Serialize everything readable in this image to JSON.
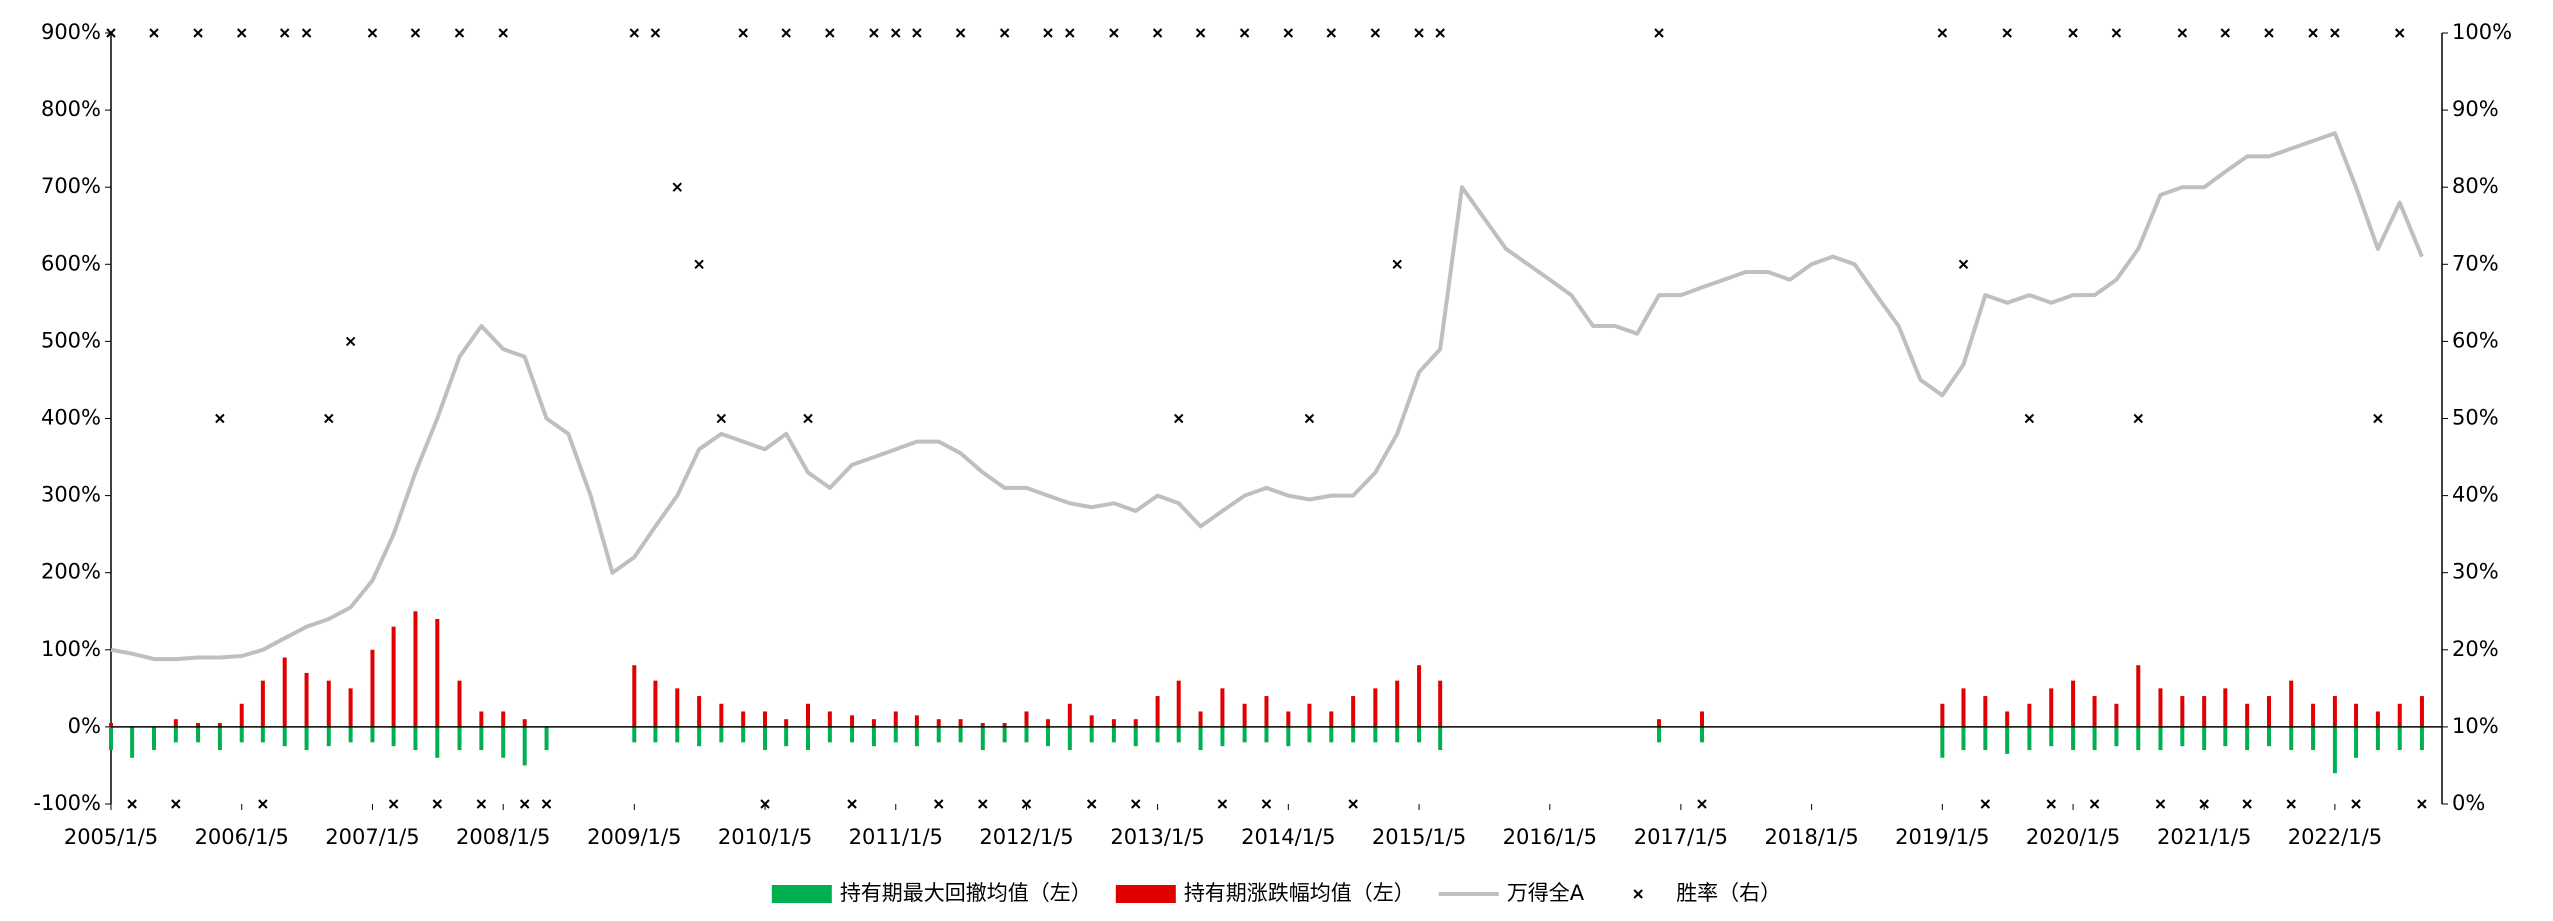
{
  "chart_data": {
    "type": "combo",
    "x": [
      "2005/1/5",
      "2005/3/5",
      "2005/5/5",
      "2005/7/5",
      "2005/9/5",
      "2005/11/5",
      "2006/1/5",
      "2006/3/5",
      "2006/5/5",
      "2006/7/5",
      "2006/9/5",
      "2006/11/5",
      "2007/1/5",
      "2007/3/5",
      "2007/5/5",
      "2007/7/5",
      "2007/9/5",
      "2007/11/5",
      "2008/1/5",
      "2008/3/5",
      "2008/5/5",
      "2008/7/5",
      "2008/9/5",
      "2008/11/5",
      "2009/1/5",
      "2009/3/5",
      "2009/5/5",
      "2009/7/5",
      "2009/9/5",
      "2009/11/5",
      "2010/1/5",
      "2010/3/5",
      "2010/5/5",
      "2010/7/5",
      "2010/9/5",
      "2010/11/5",
      "2011/1/5",
      "2011/3/5",
      "2011/5/5",
      "2011/7/5",
      "2011/9/5",
      "2011/11/5",
      "2012/1/5",
      "2012/3/5",
      "2012/5/5",
      "2012/7/5",
      "2012/9/5",
      "2012/11/5",
      "2013/1/5",
      "2013/3/5",
      "2013/5/5",
      "2013/7/5",
      "2013/9/5",
      "2013/11/5",
      "2014/1/5",
      "2014/3/5",
      "2014/5/5",
      "2014/7/5",
      "2014/9/5",
      "2014/11/5",
      "2015/1/5",
      "2015/3/5",
      "2015/5/5",
      "2015/7/5",
      "2015/9/5",
      "2015/11/5",
      "2016/1/5",
      "2016/3/5",
      "2016/5/5",
      "2016/7/5",
      "2016/9/5",
      "2016/11/5",
      "2017/1/5",
      "2017/3/5",
      "2017/5/5",
      "2017/7/5",
      "2017/9/5",
      "2017/11/5",
      "2018/1/5",
      "2018/3/5",
      "2018/5/5",
      "2018/7/5",
      "2018/9/5",
      "2018/11/5",
      "2019/1/5",
      "2019/3/5",
      "2019/5/5",
      "2019/7/5",
      "2019/9/5",
      "2019/11/5",
      "2020/1/5",
      "2020/3/5",
      "2020/5/5",
      "2020/7/5",
      "2020/9/5",
      "2020/11/5",
      "2021/1/5",
      "2021/3/5",
      "2021/5/5",
      "2021/7/5",
      "2021/9/5",
      "2021/11/5",
      "2022/1/5",
      "2022/3/5",
      "2022/5/5",
      "2022/7/5",
      "2022/9/5"
    ],
    "xlim": [
      "2005/1/5",
      "2022/10/31"
    ],
    "xticks": [
      "2005/1/5",
      "2006/1/5",
      "2007/1/5",
      "2008/1/5",
      "2009/1/5",
      "2010/1/5",
      "2011/1/5",
      "2012/1/5",
      "2013/1/5",
      "2014/1/5",
      "2015/1/5",
      "2016/1/5",
      "2017/1/5",
      "2018/1/5",
      "2019/1/5",
      "2020/1/5",
      "2021/1/5",
      "2022/1/5"
    ],
    "ylim": [
      -100,
      900
    ],
    "yticks": [
      {
        "value": -100,
        "label": "-100%"
      },
      {
        "value": 0,
        "label": "0%"
      },
      {
        "value": 100,
        "label": "100%"
      },
      {
        "value": 200,
        "label": "200%"
      },
      {
        "value": 300,
        "label": "300%"
      },
      {
        "value": 400,
        "label": "400%"
      },
      {
        "value": 500,
        "label": "500%"
      },
      {
        "value": 600,
        "label": "600%"
      },
      {
        "value": 700,
        "label": "700%"
      },
      {
        "value": 800,
        "label": "800%"
      },
      {
        "value": 900,
        "label": "900%"
      }
    ],
    "y2lim": [
      0,
      100
    ],
    "y2ticks": [
      {
        "value": 0,
        "label": "0%"
      },
      {
        "value": 10,
        "label": "10%"
      },
      {
        "value": 20,
        "label": "20%"
      },
      {
        "value": 30,
        "label": "30%"
      },
      {
        "value": 40,
        "label": "40%"
      },
      {
        "value": 50,
        "label": "50%"
      },
      {
        "value": 60,
        "label": "60%"
      },
      {
        "value": 70,
        "label": "70%"
      },
      {
        "value": 80,
        "label": "80%"
      },
      {
        "value": 90,
        "label": "90%"
      },
      {
        "value": 100,
        "label": "100%"
      }
    ],
    "series": [
      {
        "name": "持有期最大回撤均值（左）",
        "type": "bar",
        "color": "#00b050",
        "values": [
          -30,
          -40,
          -30,
          -20,
          -20,
          -30,
          -20,
          -20,
          -25,
          -30,
          -25,
          -20,
          -20,
          -25,
          -30,
          -40,
          -30,
          -30,
          -40,
          -50,
          -30,
          null,
          null,
          null,
          -20,
          -20,
          -20,
          -25,
          -20,
          -20,
          -30,
          -25,
          -30,
          -20,
          -20,
          -25,
          -20,
          -25,
          -20,
          -20,
          -30,
          -20,
          -20,
          -25,
          -30,
          -20,
          -20,
          -25,
          -20,
          -20,
          -30,
          -25,
          -20,
          -20,
          -25,
          -20,
          -20,
          -20,
          -20,
          -20,
          -20,
          -30,
          null,
          null,
          null,
          null,
          null,
          null,
          null,
          null,
          null,
          -20,
          null,
          -20,
          null,
          null,
          null,
          null,
          null,
          null,
          null,
          null,
          null,
          null,
          -40,
          -30,
          -30,
          -35,
          -30,
          -25,
          -30,
          -30,
          -25,
          -30,
          -30,
          -25,
          -30,
          -25,
          -30,
          -25,
          -30,
          -30,
          -60,
          -40,
          -30,
          -30,
          -30
        ]
      },
      {
        "name": "持有期涨跌幅均值（左）",
        "type": "bar",
        "color": "#e00000",
        "values": [
          5,
          0,
          0,
          10,
          5,
          5,
          30,
          60,
          90,
          70,
          60,
          50,
          100,
          130,
          150,
          140,
          60,
          20,
          20,
          10,
          0,
          null,
          null,
          null,
          80,
          60,
          50,
          40,
          30,
          20,
          20,
          10,
          30,
          20,
          15,
          10,
          20,
          15,
          10,
          10,
          5,
          5,
          20,
          10,
          30,
          15,
          10,
          10,
          40,
          60,
          20,
          50,
          30,
          40,
          20,
          30,
          20,
          40,
          50,
          60,
          80,
          60,
          null,
          null,
          null,
          null,
          null,
          null,
          null,
          null,
          null,
          10,
          null,
          20,
          null,
          null,
          null,
          null,
          null,
          null,
          null,
          null,
          null,
          null,
          30,
          50,
          40,
          20,
          30,
          50,
          60,
          40,
          30,
          80,
          50,
          40,
          40,
          50,
          30,
          40,
          60,
          30,
          40,
          30,
          20,
          30,
          40
        ]
      },
      {
        "name": "万得全A",
        "type": "line",
        "color": "#bfbfbf",
        "values": [
          100,
          95,
          88,
          88,
          90,
          90,
          92,
          100,
          115,
          130,
          140,
          155,
          190,
          250,
          330,
          400,
          480,
          520,
          490,
          480,
          400,
          380,
          300,
          200,
          220,
          260,
          300,
          360,
          380,
          370,
          360,
          380,
          330,
          310,
          340,
          350,
          360,
          370,
          370,
          355,
          330,
          310,
          310,
          300,
          290,
          285,
          290,
          280,
          300,
          290,
          260,
          280,
          300,
          310,
          300,
          295,
          300,
          300,
          330,
          380,
          460,
          490,
          700,
          660,
          620,
          600,
          580,
          560,
          520,
          520,
          510,
          560,
          560,
          570,
          580,
          590,
          590,
          580,
          600,
          610,
          600,
          560,
          520,
          450,
          430,
          470,
          560,
          550,
          560,
          550,
          560,
          560,
          580,
          620,
          690,
          700,
          700,
          720,
          740,
          740,
          750,
          760,
          770,
          700,
          620,
          680,
          610
        ]
      },
      {
        "name": "胜率（右）",
        "type": "scatter",
        "color": "#000000",
        "axis": "y2",
        "values": [
          100,
          0,
          100,
          0,
          100,
          50,
          100,
          0,
          100,
          100,
          50,
          60,
          100,
          0,
          100,
          0,
          100,
          0,
          100,
          0,
          0,
          null,
          null,
          null,
          100,
          100,
          80,
          70,
          50,
          100,
          0,
          100,
          50,
          100,
          0,
          100,
          100,
          100,
          0,
          100,
          0,
          100,
          0,
          100,
          100,
          0,
          100,
          0,
          100,
          50,
          100,
          0,
          100,
          0,
          100,
          50,
          100,
          0,
          100,
          70,
          100,
          100,
          null,
          null,
          null,
          null,
          null,
          null,
          null,
          null,
          null,
          100,
          null,
          0,
          null,
          null,
          null,
          null,
          null,
          null,
          null,
          null,
          null,
          null,
          100,
          70,
          0,
          100,
          50,
          0,
          100,
          0,
          100,
          50,
          0,
          100,
          0,
          100,
          0,
          100,
          0,
          100,
          100,
          0,
          50,
          100,
          0
        ]
      }
    ]
  }
}
